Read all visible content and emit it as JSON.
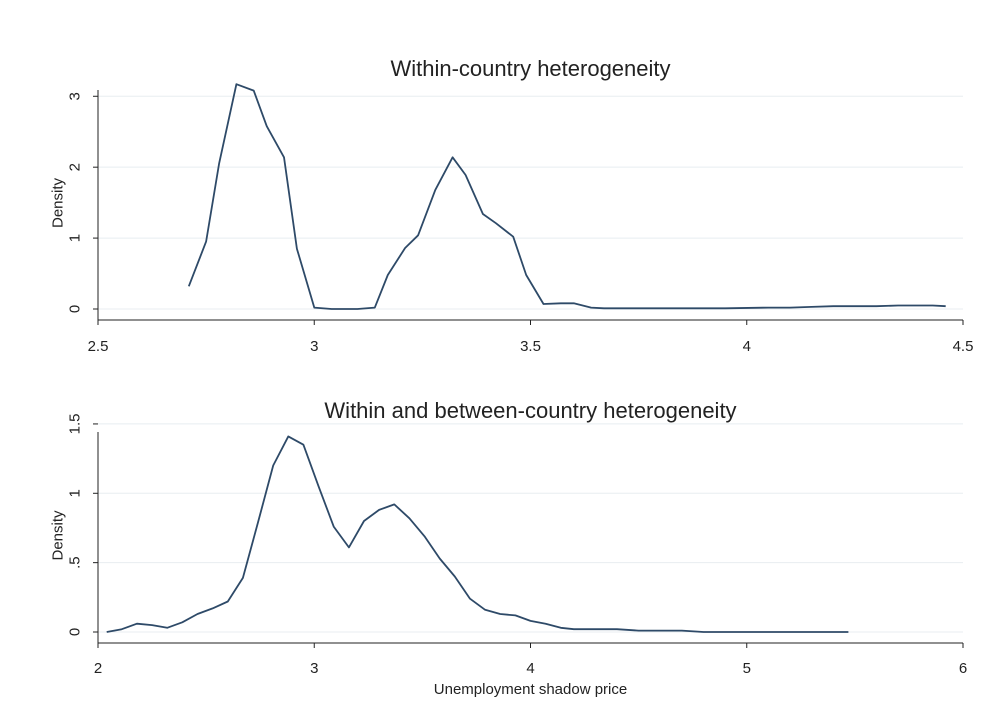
{
  "chart_data": [
    {
      "type": "line",
      "title": "Within-country heterogeneity",
      "xlabel": "",
      "ylabel": "Density",
      "xlim": [
        2.5,
        4.5
      ],
      "ylim": [
        0,
        3.3
      ],
      "xticks": [
        2.5,
        3,
        3.5,
        4,
        4.5
      ],
      "xtick_labels": [
        "2.5",
        "3",
        "3.5",
        "4",
        "4.5"
      ],
      "yticks": [
        0,
        1,
        2,
        3
      ],
      "ytick_labels": [
        "0",
        "1",
        "2",
        "3"
      ],
      "grid": true,
      "color": "#2e4a68",
      "x": [
        2.71,
        2.75,
        2.78,
        2.82,
        2.86,
        2.89,
        2.93,
        2.96,
        3.0,
        3.04,
        3.07,
        3.1,
        3.14,
        3.17,
        3.21,
        3.24,
        3.28,
        3.32,
        3.35,
        3.39,
        3.42,
        3.46,
        3.49,
        3.53,
        3.57,
        3.6,
        3.64,
        3.67,
        3.75,
        3.85,
        3.95,
        4.05,
        4.1,
        4.15,
        4.2,
        4.25,
        4.3,
        4.35,
        4.4,
        4.43,
        4.46
      ],
      "y": [
        0.32,
        0.95,
        2.05,
        3.17,
        3.08,
        2.58,
        2.14,
        0.85,
        0.02,
        0.0,
        0.0,
        0.0,
        0.02,
        0.48,
        0.86,
        1.04,
        1.68,
        2.14,
        1.89,
        1.34,
        1.21,
        1.02,
        0.48,
        0.07,
        0.08,
        0.08,
        0.02,
        0.01,
        0.01,
        0.01,
        0.01,
        0.02,
        0.02,
        0.03,
        0.04,
        0.04,
        0.04,
        0.05,
        0.05,
        0.05,
        0.04
      ]
    },
    {
      "type": "line",
      "title": "Within and between-country heterogeneity",
      "xlabel": "Unemployment shadow price",
      "ylabel": "Density",
      "xlim": [
        2,
        6
      ],
      "ylim": [
        0,
        1.5
      ],
      "xticks": [
        2,
        3,
        4,
        5,
        6
      ],
      "xtick_labels": [
        "2",
        "3",
        "4",
        "5",
        "6"
      ],
      "yticks": [
        0,
        0.5,
        1,
        1.5
      ],
      "ytick_labels": [
        "0",
        ".5",
        "1",
        "1.5"
      ],
      "grid": true,
      "color": "#2e4a68",
      "x": [
        2.04,
        2.11,
        2.18,
        2.25,
        2.32,
        2.39,
        2.46,
        2.53,
        2.6,
        2.67,
        2.74,
        2.81,
        2.88,
        2.95,
        3.02,
        3.09,
        3.16,
        3.23,
        3.3,
        3.37,
        3.44,
        3.51,
        3.58,
        3.65,
        3.72,
        3.79,
        3.86,
        3.93,
        4.0,
        4.07,
        4.14,
        4.2,
        4.3,
        4.4,
        4.5,
        4.6,
        4.7,
        4.8,
        4.9,
        5.0,
        5.1,
        5.2,
        5.3,
        5.4,
        5.47
      ],
      "y": [
        0.0,
        0.02,
        0.06,
        0.05,
        0.03,
        0.07,
        0.13,
        0.17,
        0.22,
        0.39,
        0.79,
        1.2,
        1.41,
        1.35,
        1.05,
        0.76,
        0.61,
        0.8,
        0.88,
        0.92,
        0.82,
        0.69,
        0.53,
        0.4,
        0.24,
        0.16,
        0.13,
        0.12,
        0.08,
        0.06,
        0.03,
        0.02,
        0.02,
        0.02,
        0.01,
        0.01,
        0.01,
        0.0,
        0.0,
        0.0,
        0.0,
        0.0,
        0.0,
        0.0,
        0.0
      ]
    }
  ]
}
